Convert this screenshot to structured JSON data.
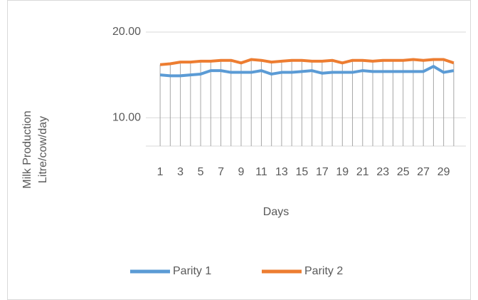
{
  "chart_data": {
    "type": "line",
    "y_label": [
      "Milk Production",
      "Litre/cow/day"
    ],
    "x_label": "Days",
    "categories": [
      "1",
      null,
      "3",
      null,
      "5",
      null,
      "7",
      null,
      "9",
      null,
      "11",
      null,
      "13",
      null,
      "15",
      null,
      "17",
      null,
      "19",
      null,
      "21",
      null,
      "23",
      null,
      "25",
      null,
      "27",
      null,
      "29",
      null
    ],
    "series": [
      {
        "name": "Parity 1",
        "color": "#5b9bd5",
        "values": [
          15.0,
          14.9,
          14.9,
          15.0,
          15.1,
          15.5,
          15.5,
          15.3,
          15.3,
          15.3,
          15.5,
          15.1,
          15.3,
          15.3,
          15.4,
          15.5,
          15.2,
          15.3,
          15.3,
          15.3,
          15.5,
          15.4,
          15.4,
          15.4,
          15.4,
          15.4,
          15.4,
          16.0,
          15.3,
          15.5
        ]
      },
      {
        "name": "Parity 2",
        "color": "#ed7d31",
        "values": [
          16.2,
          16.3,
          16.5,
          16.5,
          16.6,
          16.6,
          16.7,
          16.7,
          16.4,
          16.8,
          16.7,
          16.5,
          16.6,
          16.7,
          16.7,
          16.6,
          16.6,
          16.7,
          16.4,
          16.7,
          16.7,
          16.6,
          16.7,
          16.7,
          16.7,
          16.8,
          16.7,
          16.8,
          16.8,
          16.4
        ]
      }
    ],
    "ylim": [
      6.7,
      20
    ],
    "yticks": [
      {
        "value": 10,
        "label": "10.00"
      },
      {
        "value": 20,
        "label": "20.00"
      }
    ],
    "grid": true,
    "drop_lines": true,
    "legend": "bottom"
  }
}
